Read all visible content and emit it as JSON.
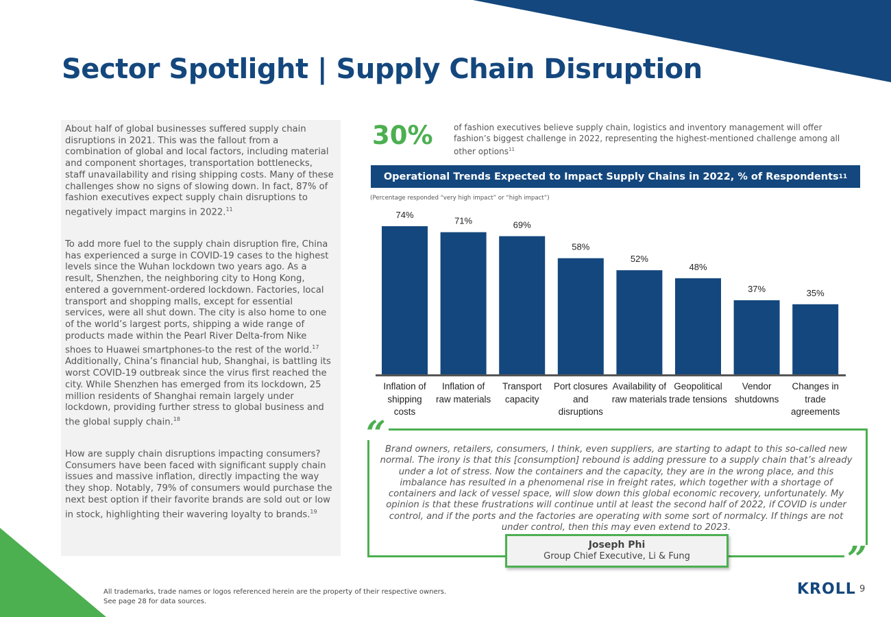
{
  "page": {
    "title": "Sector Spotlight | Supply Chain Disruption",
    "colors": {
      "navy": "#14477d",
      "green": "#4caf50",
      "panel": "#f2f2f2"
    }
  },
  "left_panel": {
    "p1": "About half of global businesses suffered supply chain disruptions in 2021. This was the fallout from a combination of global and local factors, including material and component shortages, transportation bottlenecks, staff unavailability and rising shipping costs. Many of these challenges show no signs of slowing down. In fact, 87% of fashion executives expect supply chain disruptions to negatively impact margins in 2022.",
    "p1_ref": "11",
    "p2a": "To add more fuel to the supply chain disruption fire, China has experienced a surge in COVID-19 cases to the highest levels since the Wuhan lockdown two years ago. As a result, Shenzhen, the neighboring city to Hong Kong, entered a government-ordered lockdown. Factories, local transport and shopping malls, except for essential services, were all shut down. The city is also home to one of the world’s largest ports, shipping a wide range of products made within the Pearl River Delta-from Nike shoes to Huawei smartphones-to the rest of the world.",
    "p2a_ref": "17",
    "p2b": " Additionally, China’s financial hub, Shanghai, is battling its worst COVID-19 outbreak since the virus first reached the city. While Shenzhen has emerged from its lockdown, 25 million residents of Shanghai remain largely under lockdown, providing further stress to global business and the global supply chain.",
    "p2b_ref": "18",
    "p3": "How are supply chain disruptions impacting consumers? Consumers have been faced with significant supply chain issues and massive inflation, directly impacting the way they shop. Notably, 79% of consumers would purchase the next best option if their favorite brands are sold out or low in stock, highlighting their wavering loyalty to brands.",
    "p3_ref": "19"
  },
  "stat": {
    "number": "30%",
    "text": "of fashion executives believe supply chain, logistics and inventory management will offer fashion’s biggest challenge in 2022, representing the highest-mentioned challenge among all other options",
    "ref": "11"
  },
  "chart_data": {
    "type": "bar",
    "title": "Operational Trends Expected to Impact Supply Chains in 2022, % of Respondents",
    "title_ref": "11",
    "subtitle": "(Percentage responded “very high impact” or “high impact”)",
    "categories": [
      "Inflation of shipping costs",
      "Inflation of raw materials",
      "Transport capacity",
      "Port closures and disruptions",
      "Availability of raw materials",
      "Geopolitical trade tensions",
      "Vendor shutdowns",
      "Changes in trade agreements"
    ],
    "category_lines": [
      [
        "Inflation of",
        "shipping",
        "costs"
      ],
      [
        "Inflation of",
        "raw materials"
      ],
      [
        "Transport",
        "capacity"
      ],
      [
        "Port closures",
        "and",
        "disruptions"
      ],
      [
        "Availability of",
        "raw materials"
      ],
      [
        "Geopolitical",
        "trade tensions"
      ],
      [
        "Vendor",
        "shutdowns"
      ],
      [
        "Changes in",
        "trade",
        "agreements"
      ]
    ],
    "values": [
      74,
      71,
      69,
      58,
      52,
      48,
      37,
      35
    ],
    "data_labels": [
      "74%",
      "71%",
      "69%",
      "58%",
      "52%",
      "48%",
      "37%",
      "35%"
    ],
    "ylim": [
      0,
      80
    ],
    "xlabel": "",
    "ylabel": "",
    "bar_color": "#14477d",
    "grid": false
  },
  "quote": {
    "open_mark": "“",
    "close_mark": "”",
    "text": "Brand owners, retailers, consumers, I think, even suppliers, are starting to adapt to this so-called new normal. The irony is that this [consumption] rebound is adding pressure to a supply chain that’s already under a lot of stress. Now the containers and the capacity, they are in the wrong place, and this imbalance has resulted in a phenomenal rise in freight rates, which together with a shortage of containers and lack of vessel space, will slow down this global economic recovery, unfortunately. My opinion is that these frustrations will continue until at least the second half of 2022, if COVID is under control, and if the ports and the factories are operating with some sort of normalcy. If things are not under control, then this may even extend to 2023.",
    "author_name": "Joseph Phi",
    "author_role": "Group Chief Executive, Li & Fung"
  },
  "footer": {
    "line1": "All trademarks, trade names or logos referenced herein are the property of their respective owners.",
    "line2": "See page 28 for data sources.",
    "logo": "KROLL",
    "page_number": "9"
  }
}
